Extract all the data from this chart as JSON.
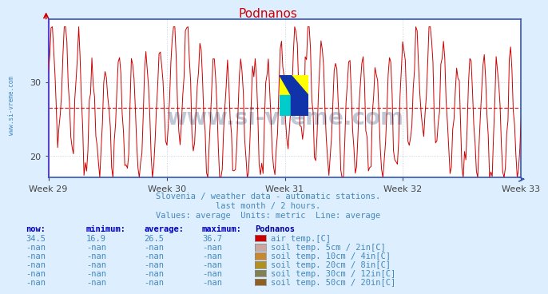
{
  "title": "Podnanos",
  "title_color": "#cc0000",
  "bg_color": "#ddeeff",
  "plot_bg_color": "#ffffff",
  "line_color": "#cc0000",
  "avg_value": 26.5,
  "y_min": 17.0,
  "y_max": 38.5,
  "y_ticks": [
    20,
    30
  ],
  "x_labels": [
    "Week 29",
    "Week 30",
    "Week 31",
    "Week 32",
    "Week 33"
  ],
  "grid_color": "#bbccdd",
  "axis_color": "#3355bb",
  "subtitle1": "Slovenia / weather data - automatic stations.",
  "subtitle2": "last month / 2 hours.",
  "subtitle3": "Values: average  Units: metric  Line: average",
  "subtitle_color": "#4488bb",
  "watermark": "www.si-vreme.com",
  "watermark_color": "#1a3a6a",
  "watermark_alpha": 0.28,
  "left_text": "www.si-vreme.com",
  "legend_headers": [
    "now:",
    "minimum:",
    "average:",
    "maximum:",
    "Podnanos"
  ],
  "legend_rows": [
    [
      "34.5",
      "16.9",
      "26.5",
      "36.7",
      "#cc0000",
      "air temp.[C]"
    ],
    [
      "-nan",
      "-nan",
      "-nan",
      "-nan",
      "#c8a8a0",
      "soil temp. 5cm / 2in[C]"
    ],
    [
      "-nan",
      "-nan",
      "-nan",
      "-nan",
      "#c88830",
      "soil temp. 10cm / 4in[C]"
    ],
    [
      "-nan",
      "-nan",
      "-nan",
      "-nan",
      "#b09020",
      "soil temp. 20cm / 8in[C]"
    ],
    [
      "-nan",
      "-nan",
      "-nan",
      "-nan",
      "#808050",
      "soil temp. 30cm / 12in[C]"
    ],
    [
      "-nan",
      "-nan",
      "-nan",
      "-nan",
      "#906020",
      "soil temp. 50cm / 20in[C]"
    ]
  ],
  "num_points": 360,
  "n_weeks": 5
}
